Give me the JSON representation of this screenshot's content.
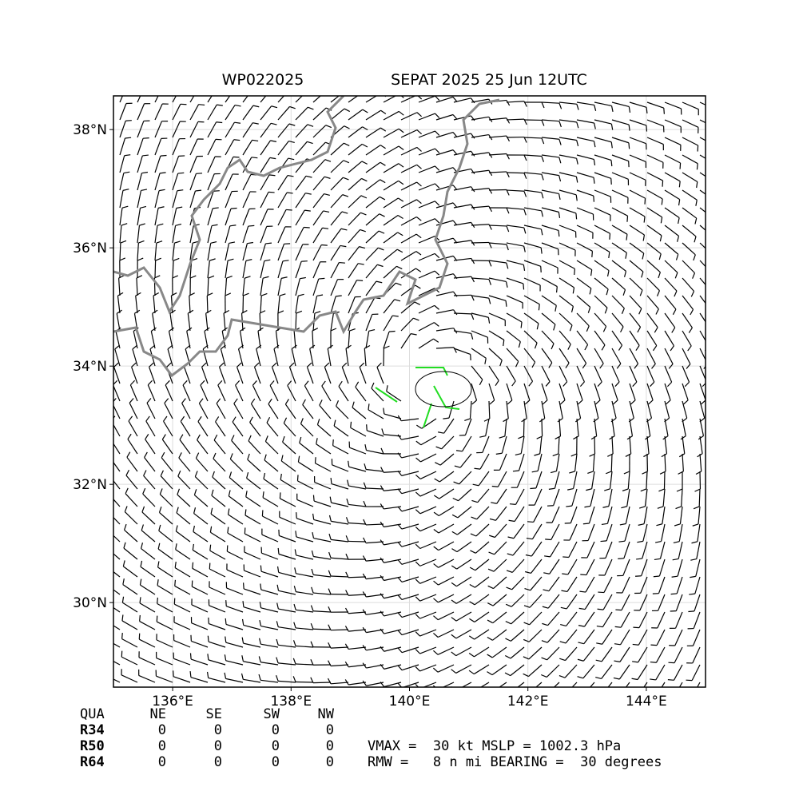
{
  "header": {
    "storm": "WP022025",
    "title": "SEPAT 2025 25 Jun 12UTC"
  },
  "map": {
    "xlim": [
      135,
      145
    ],
    "ylim": [
      28.57,
      38.57
    ],
    "grid": true,
    "xticks": [
      {
        "value": 136,
        "label": "136°E"
      },
      {
        "value": 138,
        "label": "138°E"
      },
      {
        "value": 140,
        "label": "140°E"
      },
      {
        "value": 142,
        "label": "142°E"
      },
      {
        "value": 144,
        "label": "144°E"
      }
    ],
    "yticks": [
      {
        "value": 30,
        "label": "30°N"
      },
      {
        "value": 32,
        "label": "32°N"
      },
      {
        "value": 34,
        "label": "34°N"
      },
      {
        "value": 36,
        "label": "36°N"
      },
      {
        "value": 38,
        "label": "38°N"
      }
    ]
  },
  "table": {
    "columns": [
      "QUA",
      "NE",
      "SE",
      "SW",
      "NW"
    ],
    "rows": [
      [
        "R34",
        0,
        0,
        0,
        0
      ],
      [
        "R50",
        0,
        0,
        0,
        0
      ],
      [
        "R64",
        0,
        0,
        0,
        0
      ]
    ]
  },
  "info": [
    "VMAX =  30 kt MSLP = 1002.3 hPa",
    "RMW =   8 n mi BEARING =  30 degrees"
  ]
}
